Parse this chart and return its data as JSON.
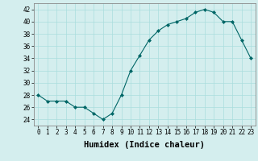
{
  "x": [
    0,
    1,
    2,
    3,
    4,
    5,
    6,
    7,
    8,
    9,
    10,
    11,
    12,
    13,
    14,
    15,
    16,
    17,
    18,
    19,
    20,
    21,
    22,
    23
  ],
  "y": [
    28,
    27,
    27,
    27,
    26,
    26,
    25,
    24,
    25,
    28,
    32,
    34.5,
    37,
    38.5,
    39.5,
    40,
    40.5,
    41.5,
    42,
    41.5,
    40,
    40,
    37,
    34
  ],
  "line_color": "#006666",
  "marker_color": "#006666",
  "bg_color": "#d4eeee",
  "grid_color": "#aadddd",
  "xlabel": "Humidex (Indice chaleur)",
  "ylim": [
    23,
    43
  ],
  "xlim": [
    -0.5,
    23.5
  ],
  "yticks": [
    24,
    26,
    28,
    30,
    32,
    34,
    36,
    38,
    40,
    42
  ],
  "xticks": [
    0,
    1,
    2,
    3,
    4,
    5,
    6,
    7,
    8,
    9,
    10,
    11,
    12,
    13,
    14,
    15,
    16,
    17,
    18,
    19,
    20,
    21,
    22,
    23
  ],
  "tick_fontsize": 5.5,
  "xlabel_fontsize": 7.5,
  "xlabel_fontweight": "bold"
}
